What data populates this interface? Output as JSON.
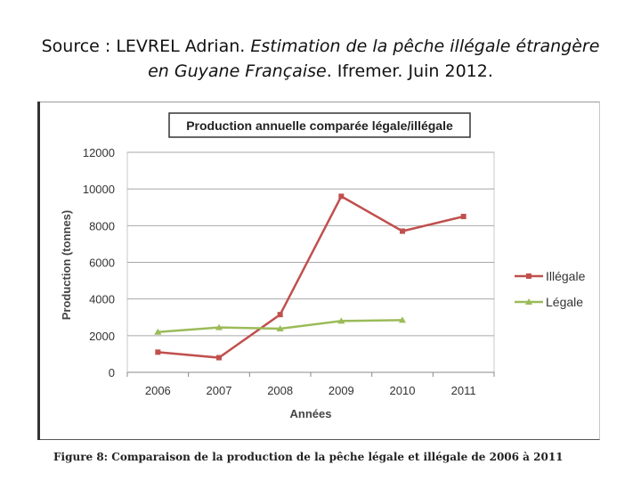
{
  "source": {
    "prefix": "Source : LEVREL Adrian. ",
    "title_part1": "Estimation de la pêche illégale étrangère",
    "title_part2": "en Guyane Française",
    "suffix": ". Ifremer. Juin 2012."
  },
  "caption": "Figure 8: Comparaison de la production de la pêche légale et illégale de 2006 à 2011",
  "chart_data": {
    "type": "line",
    "title": "Production annuelle comparée légale/illégale",
    "xlabel": "Années",
    "ylabel": "Production (tonnes)",
    "categories": [
      "2006",
      "2007",
      "2008",
      "2009",
      "2010",
      "2011"
    ],
    "ylim": [
      0,
      12000
    ],
    "yticks": [
      0,
      2000,
      4000,
      6000,
      8000,
      10000,
      12000
    ],
    "ytick_labels": [
      "0",
      "2000",
      "4000",
      "6000",
      "8000",
      "10000",
      "12000"
    ],
    "grid": true,
    "legend": "right",
    "series": [
      {
        "name": "Illégale",
        "color": "#c0504d",
        "marker": "square",
        "values": [
          1100,
          800,
          3150,
          9600,
          7700,
          8500
        ]
      },
      {
        "name": "Légale",
        "color": "#9bbb59",
        "marker": "triangle",
        "values": [
          2200,
          2450,
          2380,
          2800,
          2850,
          null
        ]
      }
    ]
  }
}
